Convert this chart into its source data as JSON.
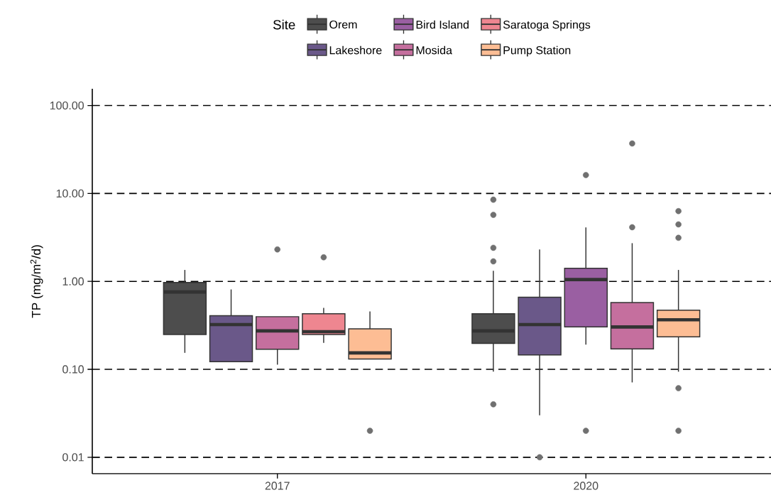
{
  "chart_data": {
    "type": "box",
    "ylabel": "TP (mg/m$^{2}$/d)",
    "legend_title": "Site",
    "legend": "top",
    "grid": "y",
    "log": "y",
    "categories": [
      "2017",
      "2020"
    ],
    "ylim": [
      0.0065,
      155
    ],
    "yticks": [
      {
        "value": 0.01,
        "label": "0.01"
      },
      {
        "value": 0.1,
        "label": "0.10"
      },
      {
        "value": 1,
        "label": "1.00"
      },
      {
        "value": 10,
        "label": "10.00"
      },
      {
        "value": 100,
        "label": "100.00"
      }
    ],
    "series": [
      {
        "name": "Orem",
        "color": "#4d4d4d",
        "boxes": [
          {
            "low": 0.154,
            "q1": 0.249,
            "median": 0.757,
            "q3": 0.97,
            "high": 1.35
          },
          {
            "low": 0.094,
            "q1": 0.197,
            "median": 0.274,
            "q3": 0.428,
            "high": 1.32,
            "outliers": [
              8.5,
              5.7,
              2.41,
              1.69,
              0.04
            ]
          }
        ]
      },
      {
        "name": "Lakeshore",
        "color": "#6a5889",
        "boxes": [
          {
            "low": 0.122,
            "q1": 0.122,
            "median": 0.323,
            "q3": 0.407,
            "high": 0.81
          },
          {
            "low": 0.03,
            "q1": 0.146,
            "median": 0.323,
            "q3": 0.66,
            "high": 2.31,
            "outliers": [
              0.01
            ]
          }
        ]
      },
      {
        "name": "Bird Island",
        "color": "#9a5fa2",
        "boxes": [
          null,
          {
            "low": 0.191,
            "q1": 0.304,
            "median": 1.05,
            "q3": 1.41,
            "high": 4.11,
            "outliers": [
              16.2,
              0.02
            ]
          }
        ]
      },
      {
        "name": "Mosida",
        "color": "#c56f9e",
        "boxes": [
          {
            "low": 0.113,
            "q1": 0.169,
            "median": 0.274,
            "q3": 0.397,
            "high": 0.397,
            "outliers": [
              2.31
            ]
          },
          {
            "low": 0.071,
            "q1": 0.171,
            "median": 0.303,
            "q3": 0.575,
            "high": 2.72,
            "outliers": [
              37,
              4.13
            ]
          }
        ]
      },
      {
        "name": "Saratoga Springs",
        "color": "#ee8690",
        "boxes": [
          {
            "low": 0.2,
            "q1": 0.249,
            "median": 0.268,
            "q3": 0.428,
            "high": 0.5,
            "outliers": [
              1.88
            ]
          },
          null
        ]
      },
      {
        "name": "Pump Station",
        "color": "#fdbd94",
        "boxes": [
          {
            "low": 0.131,
            "q1": 0.131,
            "median": 0.154,
            "q3": 0.289,
            "high": 0.455,
            "outliers": [
              0.02
            ]
          },
          {
            "low": 0.094,
            "q1": 0.234,
            "median": 0.366,
            "q3": 0.47,
            "high": 1.35,
            "outliers": [
              6.3,
              4.45,
              3.13,
              0.061,
              0.02
            ]
          }
        ]
      }
    ]
  }
}
